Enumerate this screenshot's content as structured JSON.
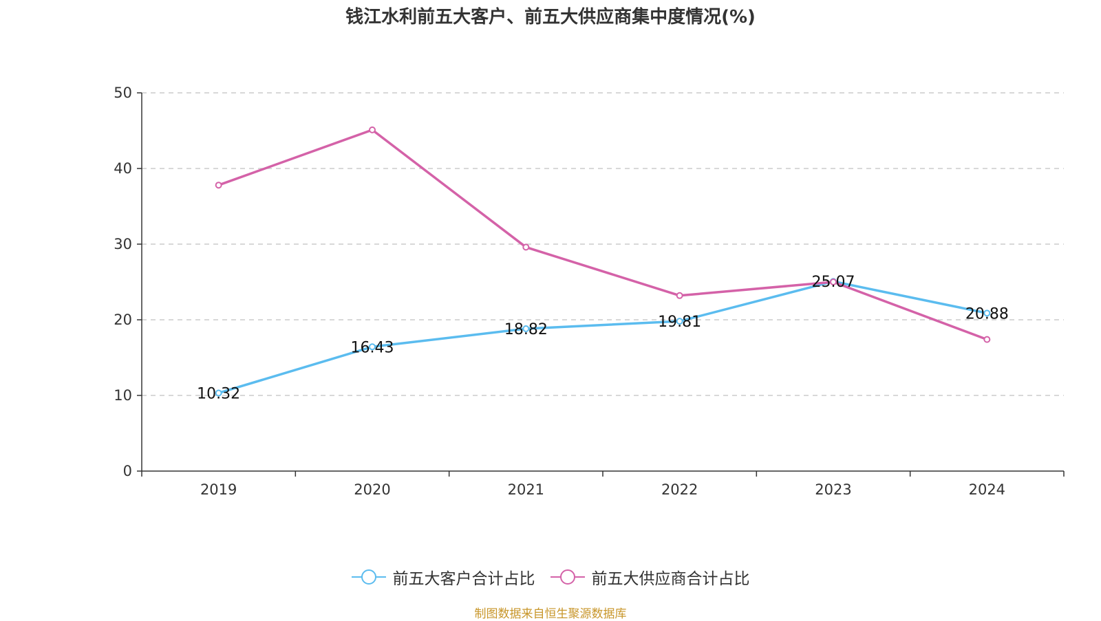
{
  "chart_data": {
    "type": "line",
    "title": "钱江水利前五大客户、前五大供应商集中度情况(%)",
    "categories": [
      "2019",
      "2020",
      "2021",
      "2022",
      "2023",
      "2024"
    ],
    "ylim": [
      0,
      50
    ],
    "yticks": [
      0,
      10,
      20,
      30,
      40,
      50
    ],
    "grid": true,
    "legend_position": "bottom",
    "series": [
      {
        "name": "前五大客户合计占比",
        "color": "#5bbcef",
        "values": [
          10.32,
          16.43,
          18.82,
          19.81,
          25.07,
          20.88
        ],
        "labels": [
          "10.32",
          "16.43",
          "18.82",
          "19.81",
          "25.07",
          "20.88"
        ]
      },
      {
        "name": "前五大供应商合计占比",
        "color": "#d462a8",
        "values": [
          37.8,
          45.1,
          29.6,
          23.2,
          25.0,
          17.4
        ]
      }
    ]
  },
  "source": "制图数据来自恒生聚源数据库"
}
